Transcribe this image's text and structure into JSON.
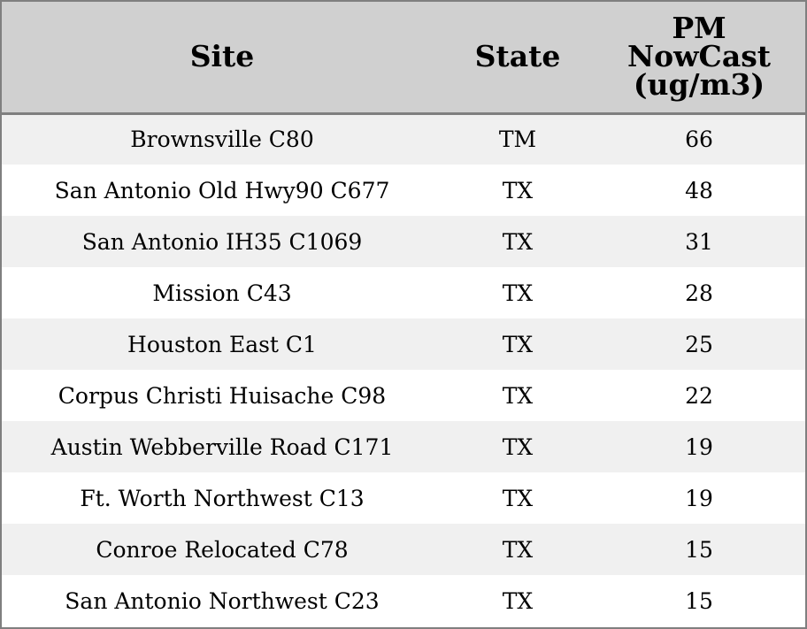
{
  "chart_data": {
    "type": "table",
    "columns": [
      "Site",
      "State",
      "PM NowCast (ug/m3)"
    ],
    "header_lines": {
      "site": "Site",
      "state": "State",
      "pm": [
        "PM",
        "NowCast",
        "(ug/m3)"
      ]
    },
    "rows": [
      {
        "site": "Brownsville C80",
        "state": "TM",
        "pm": 66
      },
      {
        "site": "San Antonio Old Hwy90 C677",
        "state": "TX",
        "pm": 48
      },
      {
        "site": "San Antonio IH35 C1069",
        "state": "TX",
        "pm": 31
      },
      {
        "site": "Mission C43",
        "state": "TX",
        "pm": 28
      },
      {
        "site": "Houston East C1",
        "state": "TX",
        "pm": 25
      },
      {
        "site": "Corpus Christi Huisache C98",
        "state": "TX",
        "pm": 22
      },
      {
        "site": "Austin Webberville Road C171",
        "state": "TX",
        "pm": 19
      },
      {
        "site": "Ft. Worth Northwest C13",
        "state": "TX",
        "pm": 19
      },
      {
        "site": "Conroe Relocated C78",
        "state": "TX",
        "pm": 15
      },
      {
        "site": "San Antonio Northwest C23",
        "state": "TX",
        "pm": 15
      }
    ],
    "colors": {
      "header_bg": "#d0d0d0",
      "row_alt_bg": "#f0f0f0",
      "row_bg": "#ffffff",
      "border": "#7f7f7f"
    }
  }
}
